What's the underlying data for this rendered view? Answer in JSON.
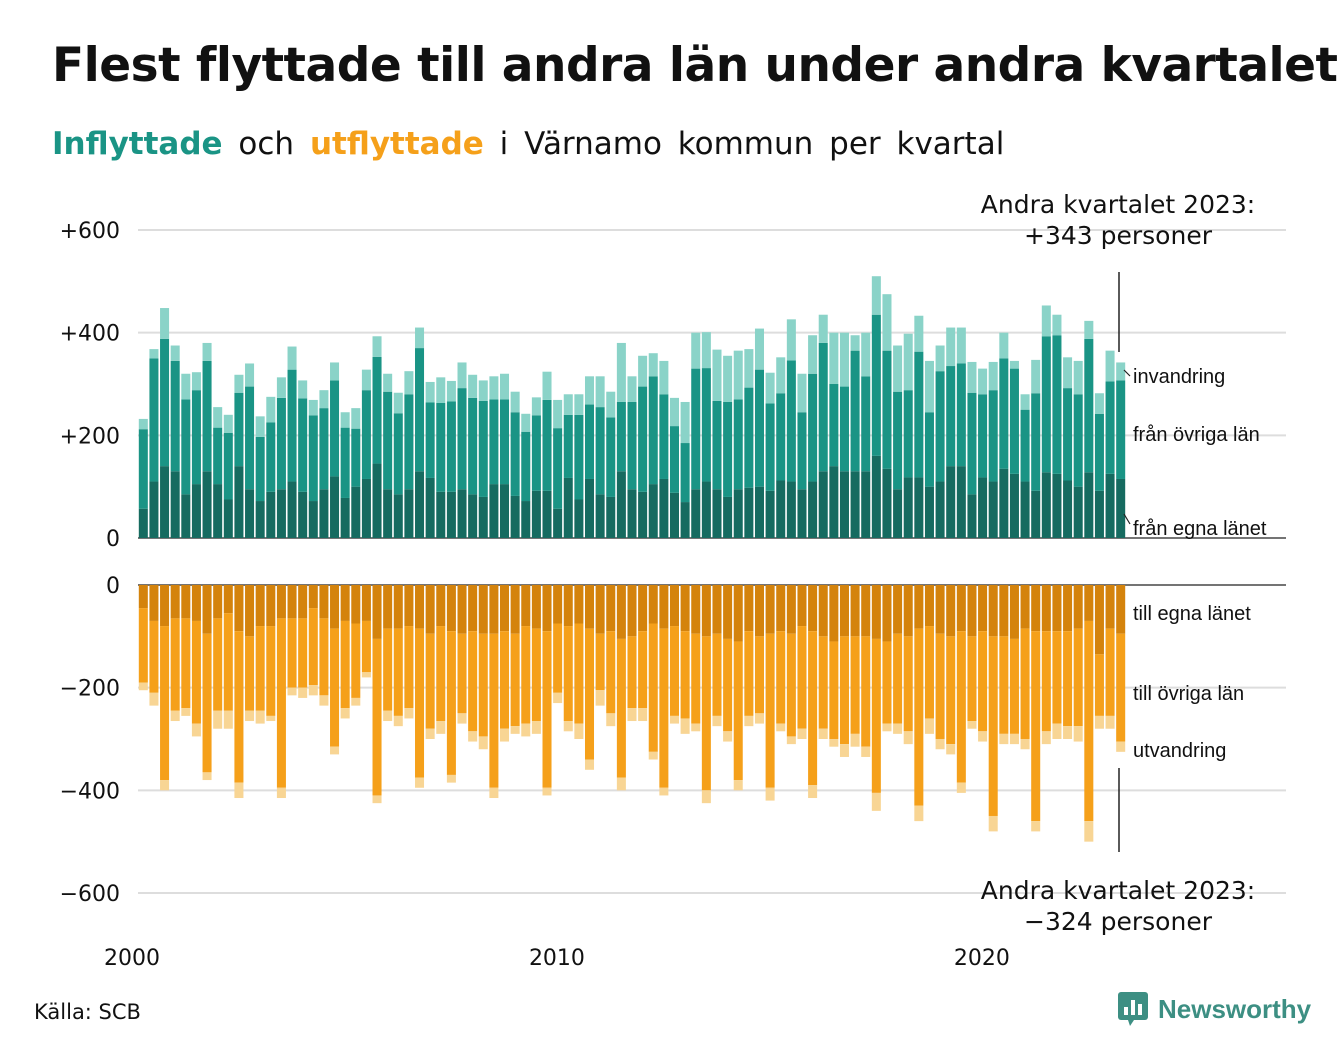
{
  "title": "Flest flyttade till andra län under andra kvartalet",
  "subtitle": {
    "inflow_word": "Inflyttade",
    "and_word": "och",
    "outflow_word": "utflyttade",
    "rest": "i Värnamo kommun per kvartal"
  },
  "annotations": {
    "top_line1": "Andra kvartalet 2023:",
    "top_line2": "+343 personer",
    "bottom_line1": "Andra kvartalet 2023:",
    "bottom_line2": "−324 personer"
  },
  "source": "Källa: SCB",
  "logo_text": "Newsworthy",
  "colors": {
    "in_own": "#166b60",
    "in_other": "#1a9485",
    "in_immigration": "#8ad3c8",
    "out_own": "#d4830c",
    "out_other": "#f5a01a",
    "out_emigration": "#f8d594",
    "grid": "#dddddd",
    "logo": "#3d8f83"
  },
  "chart_data": {
    "type": "bar",
    "stacked": true,
    "x_start": "2000 Q1",
    "x_end": "2023 Q2",
    "x_ticks": [
      {
        "label": "2000",
        "year": 2000
      },
      {
        "label": "2010",
        "year": 2010
      },
      {
        "label": "2020",
        "year": 2020
      }
    ],
    "y_ticks_top": [
      {
        "label": "0",
        "value": 0
      },
      {
        "label": "+200",
        "value": 200
      },
      {
        "label": "+400",
        "value": 400
      },
      {
        "label": "+600",
        "value": 600
      }
    ],
    "y_ticks_bottom": [
      {
        "label": "0",
        "value": 0
      },
      {
        "label": "−200",
        "value": -200
      },
      {
        "label": "−400",
        "value": -400
      },
      {
        "label": "−600",
        "value": -600
      }
    ],
    "ylim_top": [
      0,
      600
    ],
    "ylim_bottom": [
      -600,
      0
    ],
    "in_series": [
      {
        "name": "från egna länet",
        "values": [
          57,
          110,
          140,
          130,
          85,
          105,
          130,
          105,
          75,
          140,
          95,
          72,
          90,
          95,
          110,
          90,
          72,
          95,
          120,
          78,
          100,
          115,
          145,
          95,
          85,
          95,
          130,
          117,
          90,
          90,
          95,
          85,
          80,
          105,
          105,
          82,
          72,
          92,
          92,
          57,
          117,
          75,
          115,
          85,
          80,
          130,
          95,
          90,
          105,
          115,
          88,
          70,
          95,
          110,
          95,
          80,
          95,
          98,
          100,
          92,
          112,
          110,
          95,
          110,
          130,
          140,
          130,
          130,
          130,
          160,
          135,
          95,
          118,
          118,
          100,
          110,
          140,
          140,
          85,
          118,
          110,
          135,
          125,
          110,
          92,
          128,
          125,
          112,
          100,
          128,
          92,
          125,
          115
        ],
        "labels": [
          "från egna länet"
        ]
      },
      {
        "name": "från övriga län",
        "values": [
          155,
          240,
          248,
          215,
          185,
          183,
          215,
          110,
          130,
          143,
          200,
          125,
          135,
          178,
          218,
          182,
          167,
          158,
          187,
          137,
          113,
          173,
          208,
          190,
          158,
          185,
          240,
          147,
          173,
          176,
          197,
          188,
          187,
          165,
          165,
          163,
          135,
          147,
          177,
          157,
          123,
          165,
          145,
          170,
          155,
          135,
          170,
          205,
          210,
          165,
          130,
          115,
          235,
          221,
          172,
          185,
          175,
          195,
          228,
          170,
          170,
          236,
          150,
          210,
          250,
          160,
          165,
          235,
          185,
          275,
          230,
          190,
          170,
          245,
          145,
          215,
          195,
          200,
          198,
          162,
          178,
          215,
          205,
          140,
          190,
          265,
          270,
          180,
          180,
          260,
          150,
          180,
          192
        ],
        "labels": [
          "från övriga län"
        ]
      },
      {
        "name": "invandring",
        "values": [
          20,
          18,
          60,
          30,
          50,
          35,
          35,
          40,
          35,
          35,
          45,
          40,
          50,
          40,
          45,
          35,
          30,
          35,
          35,
          30,
          40,
          40,
          40,
          35,
          40,
          45,
          40,
          40,
          50,
          40,
          50,
          45,
          40,
          45,
          50,
          40,
          35,
          35,
          55,
          55,
          40,
          40,
          55,
          60,
          50,
          115,
          50,
          60,
          45,
          65,
          55,
          80,
          70,
          70,
          100,
          90,
          95,
          75,
          80,
          60,
          70,
          80,
          75,
          75,
          55,
          100,
          105,
          30,
          85,
          75,
          110,
          90,
          110,
          70,
          100,
          50,
          75,
          70,
          60,
          50,
          55,
          50,
          15,
          30,
          65,
          60,
          40,
          60,
          65,
          35,
          40,
          60,
          35
        ]
      }
    ],
    "out_series": [
      {
        "name": "till egna länet",
        "values": [
          -45,
          -70,
          -80,
          -65,
          -65,
          -70,
          -95,
          -65,
          -55,
          -90,
          -100,
          -80,
          -80,
          -65,
          -65,
          -65,
          -45,
          -65,
          -85,
          -70,
          -75,
          -70,
          -105,
          -85,
          -85,
          -80,
          -85,
          -95,
          -80,
          -90,
          -95,
          -90,
          -95,
          -95,
          -90,
          -95,
          -80,
          -85,
          -90,
          -75,
          -80,
          -75,
          -85,
          -95,
          -90,
          -105,
          -100,
          -90,
          -75,
          -85,
          -80,
          -90,
          -95,
          -100,
          -95,
          -105,
          -110,
          -90,
          -100,
          -95,
          -90,
          -95,
          -80,
          -90,
          -100,
          -110,
          -100,
          -100,
          -100,
          -105,
          -110,
          -95,
          -100,
          -85,
          -80,
          -95,
          -100,
          -90,
          -100,
          -90,
          -100,
          -100,
          -105,
          -85,
          -90,
          -90,
          -90,
          -90,
          -85,
          -70,
          -135,
          -85,
          -95
        ]
      },
      {
        "name": "till övriga län",
        "values": [
          -145,
          -140,
          -300,
          -180,
          -175,
          -200,
          -270,
          -180,
          -190,
          -295,
          -145,
          -165,
          -175,
          -330,
          -135,
          -135,
          -150,
          -150,
          -230,
          -170,
          -145,
          -100,
          -305,
          -160,
          -170,
          -160,
          -290,
          -185,
          -185,
          -280,
          -155,
          -195,
          -200,
          -300,
          -190,
          -180,
          -190,
          -180,
          -305,
          -135,
          -185,
          -195,
          -255,
          -110,
          -160,
          -270,
          -140,
          -150,
          -250,
          -310,
          -175,
          -170,
          -175,
          -300,
          -160,
          -180,
          -270,
          -165,
          -150,
          -300,
          -180,
          -200,
          -200,
          -300,
          -180,
          -190,
          -210,
          -190,
          -215,
          -300,
          -160,
          -175,
          -185,
          -345,
          -180,
          -205,
          -210,
          -295,
          -165,
          -195,
          -350,
          -190,
          -185,
          -215,
          -370,
          -195,
          -180,
          -185,
          -190,
          -390,
          -120,
          -170,
          -210
        ]
      },
      {
        "name": "utvandring",
        "values": [
          -15,
          -25,
          -20,
          -20,
          -15,
          -25,
          -15,
          -35,
          -35,
          -30,
          -20,
          -25,
          -10,
          -20,
          -15,
          -20,
          -20,
          -20,
          -15,
          -20,
          -15,
          -10,
          -15,
          -20,
          -20,
          -20,
          -20,
          -20,
          -25,
          -15,
          -20,
          -20,
          -25,
          -20,
          -25,
          -15,
          -25,
          -25,
          -15,
          -20,
          -20,
          -30,
          -20,
          -30,
          -25,
          -25,
          -25,
          -25,
          -15,
          -15,
          -15,
          -30,
          -15,
          -25,
          -20,
          -20,
          -20,
          -20,
          -20,
          -25,
          -15,
          -15,
          -20,
          -25,
          -20,
          -15,
          -25,
          -25,
          -20,
          -35,
          -15,
          -20,
          -25,
          -30,
          -30,
          -20,
          -20,
          -20,
          -15,
          -20,
          -30,
          -20,
          -20,
          -20,
          -20,
          -25,
          -30,
          -25,
          -30,
          -40,
          -25,
          -25,
          -20
        ]
      }
    ],
    "legend_top": [
      "invandring",
      "från övriga län",
      "från egna länet"
    ],
    "legend_bottom": [
      "till egna länet",
      "till övriga län",
      "utvandring"
    ]
  }
}
